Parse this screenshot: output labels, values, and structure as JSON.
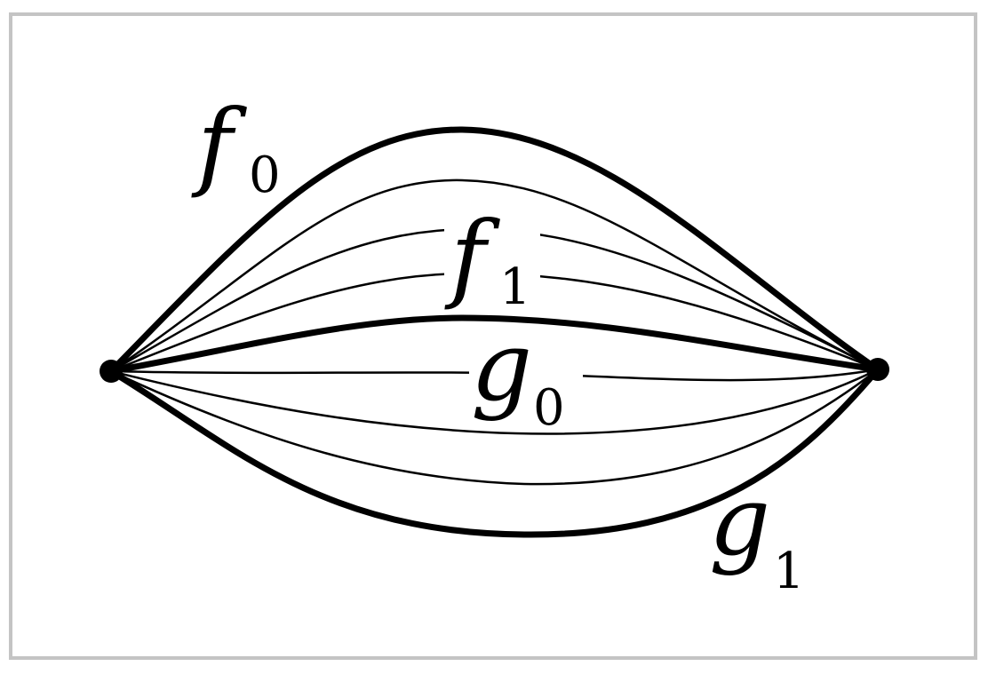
{
  "title": "",
  "colors": {
    "ink": "#000000",
    "frame": "#c4c4c4",
    "background": "#ffffff"
  },
  "diagram": {
    "description_type": "homotopy between paths",
    "endpoints": [
      "start-point",
      "end-point"
    ],
    "labels": {
      "f0": {
        "base": "f",
        "sub": "0"
      },
      "f1": {
        "base": "f",
        "sub": "1"
      },
      "g0": {
        "base": "g",
        "sub": "0"
      },
      "g1": {
        "base": "g",
        "sub": "1"
      }
    },
    "thick_paths": [
      "f0",
      "g0",
      "g1"
    ],
    "thin_paths_count": 6
  }
}
